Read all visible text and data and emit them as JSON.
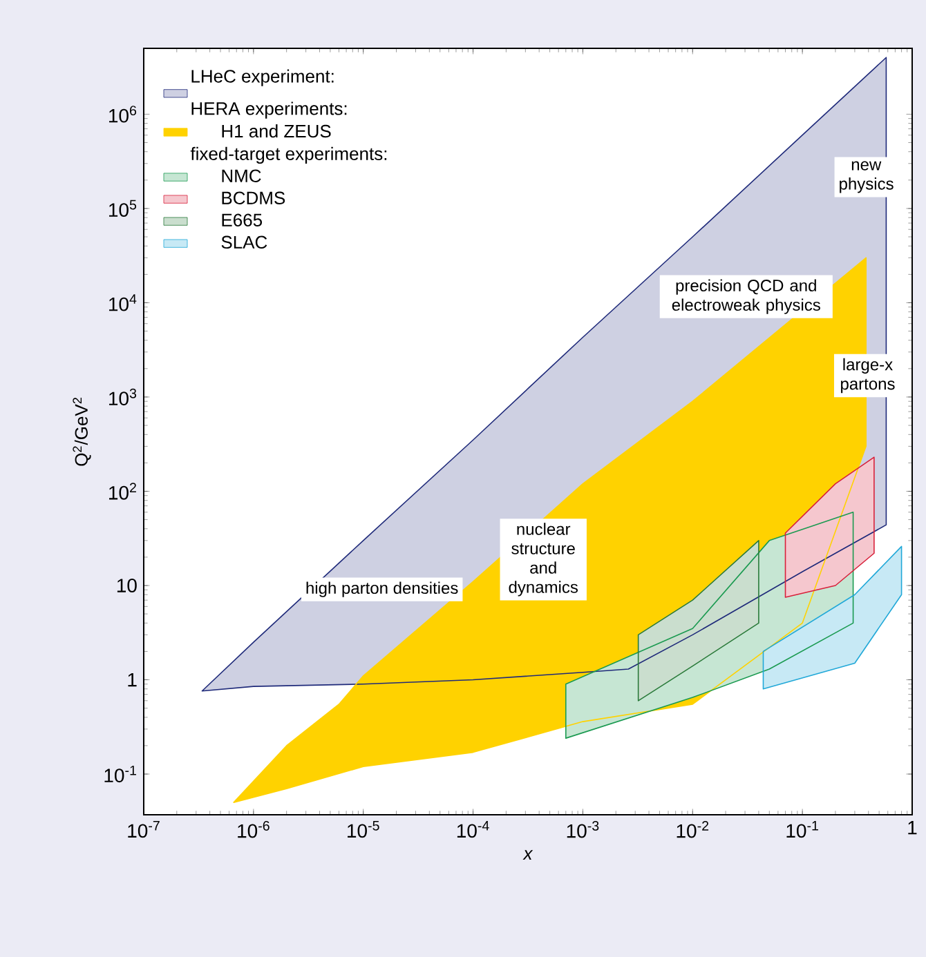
{
  "chart_data": {
    "type": "area",
    "xlabel": "x",
    "ylabel": "Q$^{2}$/GeV$^{2}$",
    "log": "xy",
    "legend": "top left",
    "xlim": [
      1e-07,
      1
    ],
    "ylim": [
      0.037,
      5000000
    ],
    "xticks": [
      {
        "value": 1e-07,
        "label": "10$^{-7}$"
      },
      {
        "value": 1e-06,
        "label": "10$^{-6}$"
      },
      {
        "value": 1e-05,
        "label": "10$^{-5}$"
      },
      {
        "value": 0.0001,
        "label": "10$^{-4}$"
      },
      {
        "value": 0.001,
        "label": "10$^{-3}$"
      },
      {
        "value": 0.01,
        "label": "10$^{-2}$"
      },
      {
        "value": 0.1,
        "label": "10$^{-1}$"
      },
      1
    ],
    "yticks": [
      {
        "value": 0.1,
        "label": "10$^{-1}$"
      },
      1,
      10,
      {
        "value": 100,
        "label": "10$^{2}$"
      },
      {
        "value": 1000,
        "label": "10$^{3}$"
      },
      {
        "value": 10000,
        "label": "10$^{4}$"
      },
      {
        "value": 100000,
        "label": "10$^{5}$"
      },
      {
        "value": 1000000,
        "label": "10$^{6}$"
      }
    ],
    "series": [
      {
        "color": "#1f2a7a",
        "x": [
          3.4e-07,
          1e-06,
          1e-05,
          0.0001,
          0.001,
          0.01,
          0.1,
          0.58,
          0.58,
          0.1,
          0.01,
          0.0026,
          0.001,
          0.0001,
          1e-05,
          1e-06
        ],
        "values": [
          0.76,
          2.5,
          30,
          350,
          4300,
          50000,
          600000,
          4000000,
          44,
          14,
          3,
          1.3,
          1.2,
          1,
          0.9,
          0.85
        ]
      },
      {
        "name": "H1 and ZEUS",
        "color": "#ffd200",
        "x": [
          6.6e-07,
          2e-06,
          6e-06,
          1e-05,
          0.0001,
          0.001,
          0.01,
          0.38,
          0.38,
          0.1,
          0.01,
          0.001,
          0.0001,
          1e-05,
          2e-06
        ],
        "values": [
          0.05,
          0.2,
          0.55,
          1.1,
          11,
          120,
          900,
          30000,
          300,
          4,
          0.55,
          0.36,
          0.17,
          0.12,
          0.07
        ]
      },
      {
        "name": "NMC",
        "color": "#1a9a50",
        "x": [
          0.0007,
          0.01,
          0.05,
          0.29,
          0.29,
          0.05,
          0.01,
          0.0007
        ],
        "values": [
          0.9,
          3.5,
          30,
          60,
          4,
          1.3,
          0.65,
          0.24
        ]
      },
      {
        "name": "BCDMS",
        "color": "#d8203a",
        "x": [
          0.07,
          0.2,
          0.45,
          0.45,
          0.2,
          0.07
        ],
        "values": [
          36,
          120,
          230,
          22,
          10,
          7.5
        ]
      },
      {
        "name": "E665",
        "color": "#2a7a3a",
        "x": [
          0.0032,
          0.01,
          0.04,
          0.04,
          0.01,
          0.0032
        ],
        "values": [
          3,
          7,
          30,
          4,
          1.4,
          0.6
        ]
      },
      {
        "name": "SLAC",
        "color": "#20a8d8",
        "x": [
          0.044,
          0.3,
          0.8,
          0.8,
          0.3,
          0.044
        ],
        "values": [
          2,
          8,
          26,
          8,
          1.5,
          0.8
        ]
      }
    ],
    "annotations": [
      "high parton densities",
      "nuclear structure and dynamics",
      "precision QCD and electroweak physics",
      "large-x partons",
      "new physics",
      "LHeC experiment:",
      "HERA experiments:",
      "fixed-target experiments:"
    ]
  }
}
